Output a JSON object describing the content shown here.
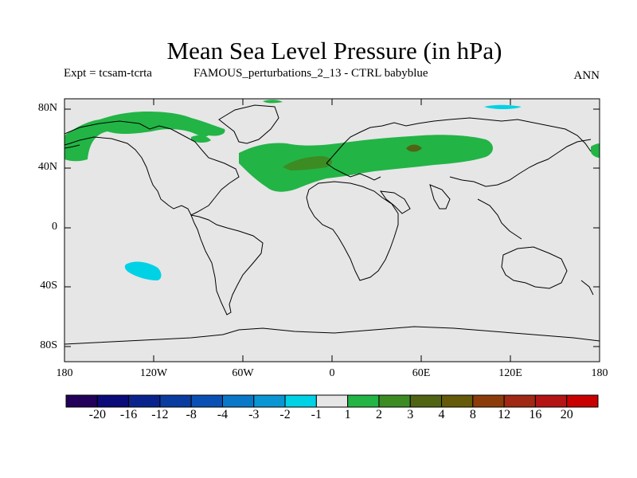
{
  "title": "Mean Sea Level Pressure (in hPa)",
  "subtitle": {
    "experiment": "Expt = tcsam-tcrta",
    "description": "FAMOUS_perturbations_2_13 - CTRL babyblue",
    "season": "ANN"
  },
  "lat_labels": [
    "80N",
    "40N",
    "0",
    "40S",
    "80S"
  ],
  "lon_labels": [
    "180",
    "120W",
    "60W",
    "0",
    "60E",
    "120E",
    "180"
  ],
  "colorbar": {
    "colors": [
      "#23005a",
      "#0a0a78",
      "#0a238c",
      "#0a3ca0",
      "#0a50b4",
      "#0a78c8",
      "#0a96d2",
      "#00d2e6",
      "#e6e6e6",
      "#23b446",
      "#3c8c23",
      "#506414",
      "#645a0a",
      "#8c3c0a",
      "#a02814",
      "#b41414",
      "#c80000"
    ],
    "labels": [
      "-20",
      "-16",
      "-12",
      "-8",
      "-4",
      "-3",
      "-2",
      "-1",
      "1",
      "2",
      "3",
      "4",
      "8",
      "12",
      "16",
      "20"
    ]
  },
  "colors": {
    "land_ocean_bg": "#e6e6e6",
    "positive_1_2": "#23b446",
    "positive_2_3": "#3c8c23",
    "positive_3_4": "#506414",
    "negative_m2_m1": "#00d2e6"
  }
}
